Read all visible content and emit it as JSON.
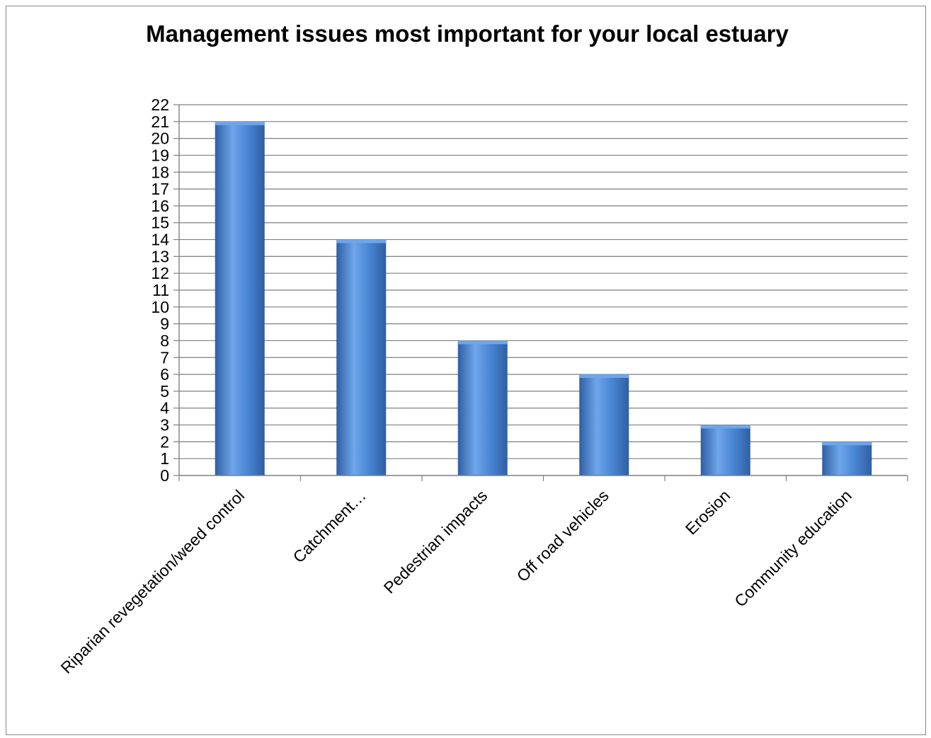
{
  "chart_data": {
    "type": "bar",
    "title": "Management issues most important for your local estuary",
    "xlabel": "",
    "ylabel": "",
    "categories": [
      "Riparian revegetation/weed control",
      "Catchment…",
      "Pedestrian impacts",
      "Off road vehicles",
      "Erosion",
      "Community education"
    ],
    "values": [
      21,
      14,
      8,
      6,
      3,
      2
    ],
    "ylim": [
      0,
      22
    ],
    "ytick_step": 1,
    "grid": true,
    "legend": "none",
    "colors": {
      "bar": "#4a86d4",
      "bar_dark": "#2f5fa3",
      "bar_light": "#6fa5ea",
      "grid": "#7f7f7f",
      "axis": "#7f7f7f"
    }
  }
}
